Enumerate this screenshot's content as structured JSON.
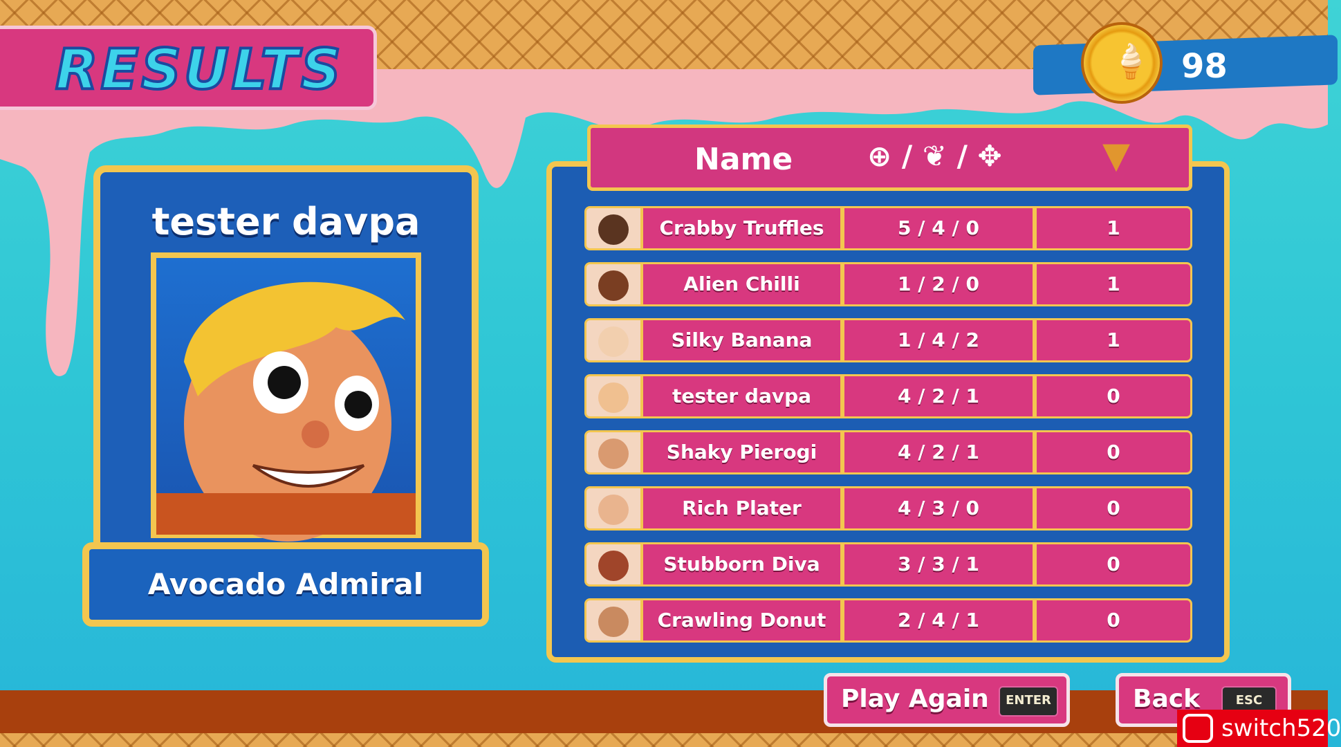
{
  "title": "RESULTS",
  "currency": {
    "icon": "ice-cream-coin-icon",
    "value": "98"
  },
  "player": {
    "name": "tester davpa",
    "title": "Avocado Admiral"
  },
  "table": {
    "header": {
      "name": "Name",
      "stats_icons": "⊕ / ❦ / ✥",
      "cone_icon": "ice-cream-cone-icon"
    },
    "rows": [
      {
        "name": "Crabby Truffles",
        "stats": "5 / 4 / 0",
        "cones": "1"
      },
      {
        "name": "Alien Chilli",
        "stats": "1 / 2 / 0",
        "cones": "1"
      },
      {
        "name": "Silky Banana",
        "stats": "1 / 4 / 2",
        "cones": "1"
      },
      {
        "name": "tester davpa",
        "stats": "4 / 2 / 1",
        "cones": "0"
      },
      {
        "name": "Shaky Pierogi",
        "stats": "4 / 2 / 1",
        "cones": "0"
      },
      {
        "name": "Rich Plater",
        "stats": "4 / 3 / 0",
        "cones": "0"
      },
      {
        "name": "Stubborn Diva",
        "stats": "3 / 3 / 1",
        "cones": "0"
      },
      {
        "name": "Crawling Donut",
        "stats": "2 / 4 / 1",
        "cones": "0"
      }
    ]
  },
  "buttons": {
    "play_again": "Play Again",
    "play_again_key": "ENTER",
    "back": "Back",
    "back_key": "ESC"
  },
  "watermark": "switch520",
  "colors": {
    "pink": "#d8387f",
    "gold": "#f3c64f",
    "blue": "#1c5db3",
    "cyan": "#3fd3d6"
  }
}
